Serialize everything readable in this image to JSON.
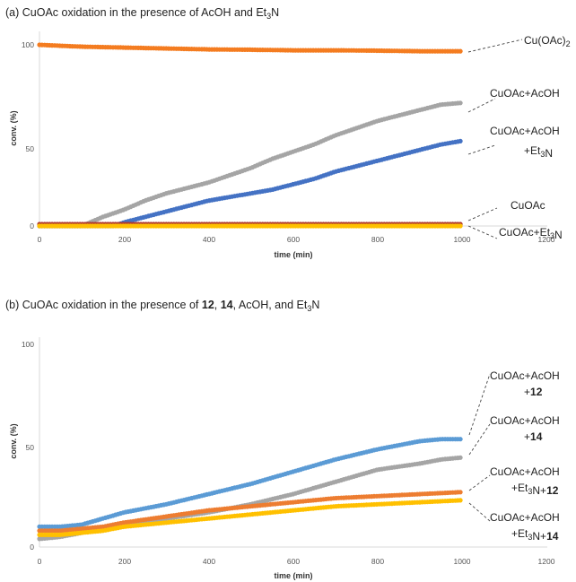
{
  "chart_data": [
    {
      "type": "scatter",
      "title": "(a) CuOAc oxidation in the presence of AcOH and Et",
      "title_sub": "3",
      "title_tail": "N",
      "xlabel": "time (min)",
      "ylabel": "conv. (%)",
      "xlim": [
        0,
        1200
      ],
      "ylim": [
        0,
        100
      ],
      "xticks": [
        "0",
        "200",
        "400",
        "600",
        "800",
        "1000",
        "1200"
      ],
      "yticks": [
        "0",
        "50",
        "100"
      ],
      "grid": false,
      "legend": "direct labels on the right",
      "series": [
        {
          "color": "#f47c20",
          "label": [
            {
              "t": "Cu(OAc)"
            },
            {
              "t": "2",
              "sub": true
            }
          ],
          "points": [
            [
              0,
              100
            ],
            [
              50,
              99.5
            ],
            [
              100,
              99
            ],
            [
              200,
              98.5
            ],
            [
              300,
              98
            ],
            [
              400,
              97.5
            ],
            [
              500,
              97.3
            ],
            [
              600,
              97
            ],
            [
              700,
              97
            ],
            [
              800,
              96.8
            ],
            [
              900,
              96.5
            ],
            [
              1000,
              96.5
            ]
          ]
        },
        {
          "color": "#a5a5a5",
          "label": [
            {
              "t": "CuOAc+AcOH"
            }
          ],
          "points": [
            [
              0,
              0
            ],
            [
              100,
              0
            ],
            [
              120,
              2
            ],
            [
              150,
              5
            ],
            [
              200,
              9
            ],
            [
              250,
              14
            ],
            [
              300,
              18
            ],
            [
              350,
              21
            ],
            [
              400,
              24
            ],
            [
              450,
              28
            ],
            [
              500,
              32
            ],
            [
              550,
              37
            ],
            [
              600,
              41
            ],
            [
              650,
              45
            ],
            [
              700,
              50
            ],
            [
              750,
              54
            ],
            [
              800,
              58
            ],
            [
              850,
              61
            ],
            [
              900,
              64
            ],
            [
              950,
              67
            ],
            [
              1000,
              68
            ]
          ]
        },
        {
          "color": "#4472c4",
          "label": [
            {
              "t": "CuOAc+AcOH"
            }
          ],
          "label2": [
            {
              "t": "+Et"
            },
            {
              "t": "3",
              "sub": true
            },
            {
              "t": "N"
            }
          ],
          "points": [
            [
              0,
              0
            ],
            [
              175,
              0
            ],
            [
              200,
              2
            ],
            [
              250,
              5
            ],
            [
              300,
              8
            ],
            [
              350,
              11
            ],
            [
              400,
              14
            ],
            [
              450,
              16
            ],
            [
              500,
              18
            ],
            [
              550,
              20
            ],
            [
              600,
              23
            ],
            [
              650,
              26
            ],
            [
              700,
              30
            ],
            [
              750,
              33
            ],
            [
              800,
              36
            ],
            [
              850,
              39
            ],
            [
              900,
              42
            ],
            [
              950,
              45
            ],
            [
              1000,
              47
            ]
          ]
        },
        {
          "color": "#b03a2e",
          "label": [
            {
              "t": "CuOAc"
            }
          ],
          "points": [
            [
              0,
              1
            ],
            [
              200,
              1
            ],
            [
              400,
              1
            ],
            [
              600,
              1
            ],
            [
              800,
              1
            ],
            [
              1000,
              1
            ]
          ]
        },
        {
          "color": "#ffc000",
          "label": [
            {
              "t": "CuOAc+Et"
            },
            {
              "t": "3",
              "sub": true
            },
            {
              "t": "N"
            }
          ],
          "points": [
            [
              0,
              0
            ],
            [
              200,
              0
            ],
            [
              400,
              0
            ],
            [
              600,
              0
            ],
            [
              800,
              0
            ],
            [
              1000,
              0
            ]
          ]
        }
      ]
    },
    {
      "type": "scatter",
      "title": "(b) CuOAc oxidation in the presence of ",
      "title_b1": "12",
      "title_mid1": ", ",
      "title_b2": "14",
      "title_mid2": ",  AcOH, and Et",
      "title_sub": "3",
      "title_tail": "N",
      "xlabel": "time (min)",
      "ylabel": "conv. (%)",
      "xlim": [
        0,
        1200
      ],
      "ylim": [
        0,
        100
      ],
      "xticks": [
        "0",
        "200",
        "400",
        "600",
        "800",
        "1000",
        "1200"
      ],
      "yticks": [
        "0",
        "50",
        "100"
      ],
      "grid": false,
      "legend": "direct labels on the right",
      "series": [
        {
          "color": "#5b9bd5",
          "label": [
            {
              "t": "CuOAc+AcOH"
            }
          ],
          "label2": [
            {
              "t": "+"
            },
            {
              "t": "12",
              "bold": true
            }
          ],
          "points": [
            [
              0,
              10
            ],
            [
              50,
              10
            ],
            [
              100,
              11
            ],
            [
              150,
              14
            ],
            [
              200,
              17
            ],
            [
              300,
              21
            ],
            [
              400,
              26
            ],
            [
              500,
              31
            ],
            [
              600,
              37
            ],
            [
              700,
              43
            ],
            [
              800,
              48
            ],
            [
              900,
              52
            ],
            [
              950,
              53
            ],
            [
              1000,
              53
            ]
          ]
        },
        {
          "color": "#a5a5a5",
          "label": [
            {
              "t": "CuOAc+AcOH"
            }
          ],
          "label2": [
            {
              "t": "+"
            },
            {
              "t": "14",
              "bold": true
            }
          ],
          "points": [
            [
              0,
              4
            ],
            [
              50,
              5
            ],
            [
              100,
              7
            ],
            [
              150,
              9
            ],
            [
              200,
              11
            ],
            [
              300,
              14
            ],
            [
              400,
              17
            ],
            [
              500,
              21
            ],
            [
              600,
              26
            ],
            [
              700,
              32
            ],
            [
              800,
              38
            ],
            [
              900,
              41
            ],
            [
              950,
              43
            ],
            [
              1000,
              44
            ]
          ]
        },
        {
          "color": "#ed7d31",
          "label": [
            {
              "t": "CuOAc+AcOH"
            }
          ],
          "label2": [
            {
              "t": "+Et"
            },
            {
              "t": "3",
              "sub": true
            },
            {
              "t": "N+"
            },
            {
              "t": "12",
              "bold": true
            }
          ],
          "points": [
            [
              0,
              8
            ],
            [
              50,
              8
            ],
            [
              100,
              9
            ],
            [
              150,
              10
            ],
            [
              200,
              12
            ],
            [
              300,
              15
            ],
            [
              400,
              18
            ],
            [
              500,
              20
            ],
            [
              600,
              22
            ],
            [
              700,
              24
            ],
            [
              800,
              25
            ],
            [
              900,
              26
            ],
            [
              1000,
              27
            ]
          ]
        },
        {
          "color": "#ffc000",
          "label": [
            {
              "t": "CuOAc+AcOH"
            }
          ],
          "label2": [
            {
              "t": "+Et"
            },
            {
              "t": "3",
              "sub": true
            },
            {
              "t": "N+"
            },
            {
              "t": "14",
              "bold": true
            }
          ],
          "points": [
            [
              0,
              6
            ],
            [
              50,
              6
            ],
            [
              100,
              7
            ],
            [
              150,
              8
            ],
            [
              200,
              10
            ],
            [
              300,
              12
            ],
            [
              400,
              14
            ],
            [
              500,
              16
            ],
            [
              600,
              18
            ],
            [
              700,
              20
            ],
            [
              800,
              21
            ],
            [
              900,
              22
            ],
            [
              1000,
              23
            ]
          ]
        }
      ]
    }
  ]
}
